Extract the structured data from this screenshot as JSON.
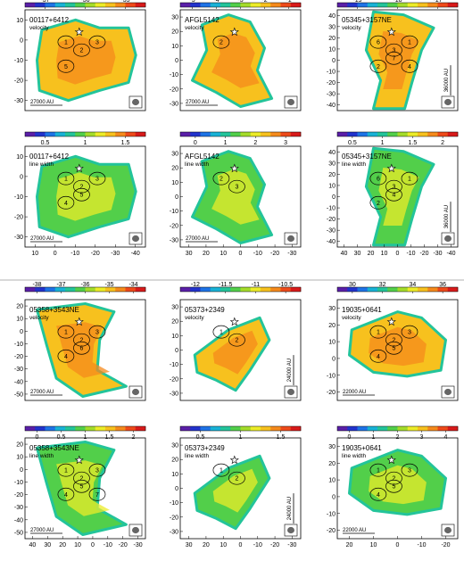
{
  "chart_data": [
    {
      "type": "heatmap",
      "source": "00117+6412",
      "map": "velocity",
      "colorbar": [
        "-37",
        "-36",
        "-35"
      ],
      "xticks": [],
      "yticks": [
        "10",
        "0",
        "-10",
        "-20",
        "-30"
      ],
      "scalebar": "27000 AU",
      "cores": [
        "1",
        "2",
        "3",
        "5"
      ]
    },
    {
      "type": "heatmap",
      "source": "AFGL5142",
      "map": "velocity",
      "colorbar": [
        "-5",
        "-4",
        "-3",
        "-2",
        "-1"
      ],
      "xticks": [],
      "yticks": [
        "30",
        "20",
        "10",
        "0",
        "-10",
        "-20",
        "-30"
      ],
      "scalebar": "27000 AU",
      "cores": [
        "2"
      ]
    },
    {
      "type": "heatmap",
      "source": "05345+3157NE",
      "map": "velocity",
      "colorbar": [
        "-19",
        "-18",
        "-17"
      ],
      "xticks": [],
      "yticks": [
        "40",
        "30",
        "20",
        "10",
        "0",
        "-10",
        "-20",
        "-30",
        "-40"
      ],
      "scalebar": "36000 AU",
      "cores": [
        "6",
        "3",
        "1",
        "2",
        "7",
        "4"
      ]
    },
    {
      "type": "heatmap",
      "source": "00117+6412",
      "map": "line width",
      "colorbar": [
        "0.5",
        "1",
        "1.5"
      ],
      "xticks": [
        "10",
        "0",
        "-10",
        "-20",
        "-30",
        "-40"
      ],
      "yticks": [
        "10",
        "0",
        "-10",
        "-20",
        "-30"
      ],
      "scalebar": "27000 AU",
      "cores": [
        "1",
        "2",
        "3",
        "4",
        "5"
      ]
    },
    {
      "type": "heatmap",
      "source": "AFGL5142",
      "map": "line width",
      "colorbar": [
        "0",
        "1",
        "2",
        "3"
      ],
      "xticks": [
        "30",
        "20",
        "10",
        "0",
        "-10",
        "-20",
        "-30"
      ],
      "yticks": [
        "30",
        "20",
        "10",
        "0",
        "-10",
        "-20",
        "-30"
      ],
      "scalebar": "27000 AU",
      "cores": [
        "2",
        "3"
      ]
    },
    {
      "type": "heatmap",
      "source": "05345+3157NE",
      "map": "line width",
      "colorbar": [
        "0.5",
        "1",
        "1.5",
        "2"
      ],
      "xticks": [
        "40",
        "30",
        "20",
        "10",
        "0",
        "-10",
        "-20",
        "-30",
        "-40"
      ],
      "yticks": [
        "40",
        "30",
        "20",
        "10",
        "0",
        "-10",
        "-20",
        "-30",
        "-40"
      ],
      "scalebar": "36000 AU",
      "cores": [
        "6",
        "3",
        "1",
        "2",
        "4"
      ]
    },
    {
      "type": "heatmap",
      "source": "05358+3543NE",
      "map": "velocity",
      "colorbar": [
        "-38",
        "-37",
        "-36",
        "-35",
        "-34"
      ],
      "xticks": [],
      "yticks": [
        "20",
        "10",
        "0",
        "-10",
        "-20",
        "-30",
        "-40",
        "-50"
      ],
      "scalebar": "27000 AU",
      "cores": [
        "1",
        "2",
        "3",
        "4",
        "6"
      ]
    },
    {
      "type": "heatmap",
      "source": "05373+2349",
      "map": "velocity",
      "colorbar": [
        "-12",
        "-11.5",
        "-11",
        "-10.5"
      ],
      "xticks": [],
      "yticks": [
        "30",
        "20",
        "10",
        "0",
        "-10",
        "-20",
        "-30"
      ],
      "scalebar": "24000 AU",
      "cores": [
        "1",
        "2"
      ]
    },
    {
      "type": "heatmap",
      "source": "19035+0641",
      "map": "velocity",
      "colorbar": [
        "30",
        "32",
        "34",
        "36"
      ],
      "xticks": [],
      "yticks": [
        "30",
        "20",
        "10",
        "0",
        "-10",
        "-20"
      ],
      "scalebar": "22000 AU",
      "cores": [
        "1",
        "2",
        "3",
        "4",
        "5"
      ]
    },
    {
      "type": "heatmap",
      "source": "05358+3543NE",
      "map": "line width",
      "colorbar": [
        "0",
        "0.5",
        "1",
        "1.5",
        "2"
      ],
      "xticks": [
        "40",
        "30",
        "20",
        "10",
        "0",
        "-10",
        "-20",
        "-30"
      ],
      "yticks": [
        "20",
        "10",
        "0",
        "-10",
        "-20",
        "-30",
        "-40",
        "-50"
      ],
      "scalebar": "27000 AU",
      "cores": [
        "1",
        "2",
        "3",
        "4",
        "5",
        "7"
      ]
    },
    {
      "type": "heatmap",
      "source": "05373+2349",
      "map": "line width",
      "colorbar": [
        "0.5",
        "1",
        "1.5"
      ],
      "xticks": [
        "30",
        "20",
        "10",
        "0",
        "-10",
        "-20",
        "-30"
      ],
      "yticks": [
        "30",
        "20",
        "10",
        "0",
        "-10",
        "-20",
        "-30"
      ],
      "scalebar": "24000 AU",
      "cores": [
        "1",
        "2"
      ]
    },
    {
      "type": "heatmap",
      "source": "19035+0641",
      "map": "line width",
      "colorbar": [
        "0",
        "1",
        "2",
        "3",
        "4"
      ],
      "xticks": [
        "20",
        "10",
        "0",
        "-10",
        "-20"
      ],
      "yticks": [
        "30",
        "20",
        "10",
        "0",
        "-10",
        "-20"
      ],
      "scalebar": "22000 AU",
      "cores": [
        "1",
        "2",
        "3",
        "4",
        "5"
      ]
    }
  ]
}
